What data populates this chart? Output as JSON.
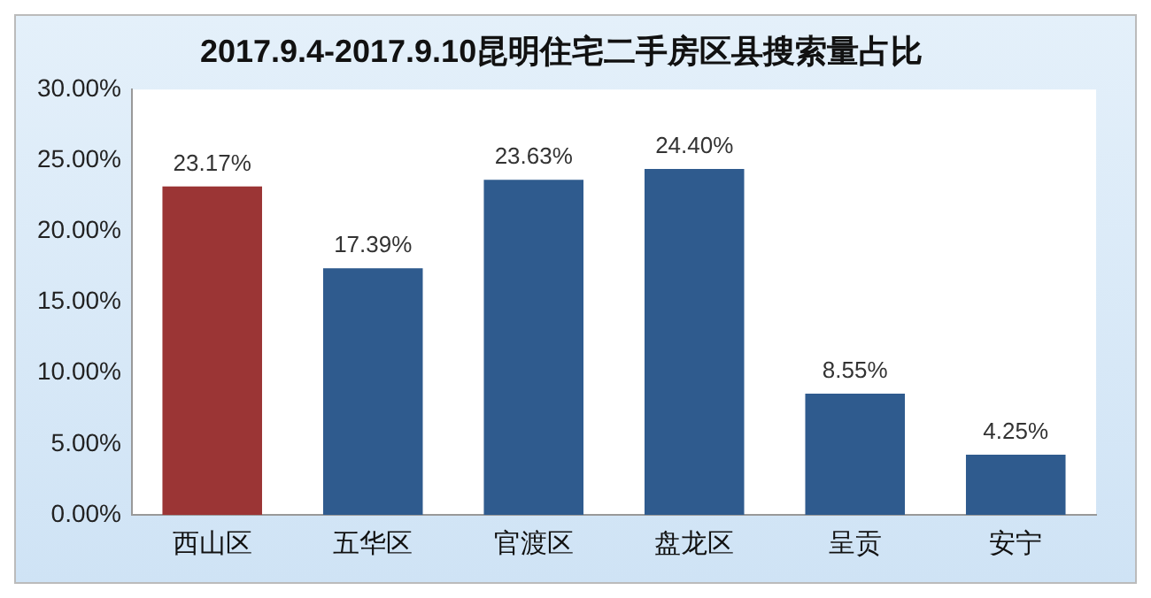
{
  "chart_data": {
    "type": "bar",
    "title": "2017.9.4-2017.9.10昆明住宅二手房区县搜索量占比",
    "categories": [
      "西山区",
      "五华区",
      "官渡区",
      "盘龙区",
      "呈贡",
      "安宁"
    ],
    "values": [
      23.17,
      17.39,
      23.63,
      24.4,
      8.55,
      4.25
    ],
    "colors": [
      "#9b3535",
      "#2f5b8e",
      "#2f5b8e",
      "#2f5b8e",
      "#2f5b8e",
      "#2f5b8e"
    ],
    "value_labels": [
      "23.17%",
      "17.39%",
      "23.63%",
      "24.40%",
      "8.55%",
      "4.25%"
    ],
    "ylim": [
      0,
      30
    ],
    "yticks": [
      {
        "value": 0,
        "label": "0.00%"
      },
      {
        "value": 5,
        "label": "5.00%"
      },
      {
        "value": 10,
        "label": "10.00%"
      },
      {
        "value": 15,
        "label": "15.00%"
      },
      {
        "value": 20,
        "label": "20.00%"
      },
      {
        "value": 25,
        "label": "25.00%"
      },
      {
        "value": 30,
        "label": "30.00%"
      }
    ],
    "grid": false,
    "legend": false
  }
}
